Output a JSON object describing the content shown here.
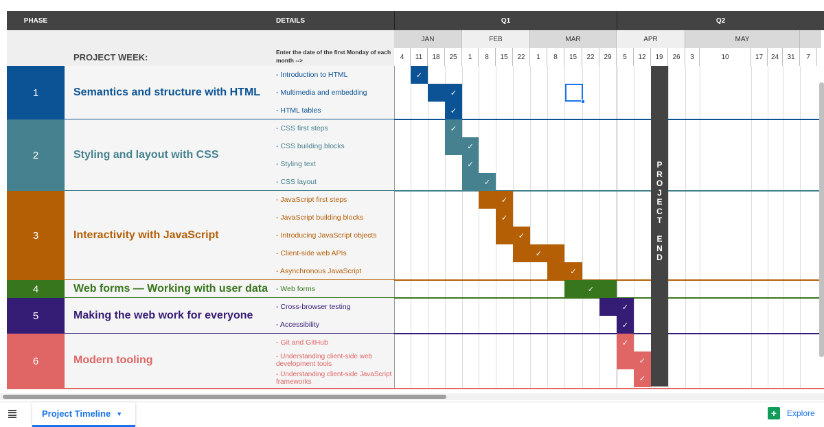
{
  "header": {
    "phase": "PHASE",
    "details": "DETAILS",
    "q1": "Q1",
    "q2": "Q2"
  },
  "months": [
    "JAN",
    "FEB",
    "MAR",
    "APR",
    "MAY"
  ],
  "project_week_label": "PROJECT WEEK:",
  "project_week_note": "Enter the date of the first Monday of each month -->",
  "weeks": [
    "4",
    "11",
    "18",
    "25",
    "1",
    "8",
    "15",
    "22",
    "1",
    "8",
    "15",
    "22",
    "29",
    "5",
    "12",
    "19",
    "26",
    "3",
    "10",
    "17",
    "24",
    "31",
    "7"
  ],
  "phases": [
    {
      "num": "1",
      "title": "Semantics and structure with HTML",
      "color": "#0b5394",
      "tasks": [
        "- Introduction to HTML",
        "- Multimedia and embedding",
        "- HTML tables"
      ]
    },
    {
      "num": "2",
      "title": "Styling and layout with CSS",
      "color": "#45818e",
      "tasks": [
        "- CSS first steps",
        "- CSS building blocks",
        "- Styling text",
        "- CSS layout"
      ]
    },
    {
      "num": "3",
      "title": "Interactivity with JavaScript",
      "color": "#b45f06",
      "tasks": [
        "- JavaScript first steps",
        "- JavaScript building blocks",
        "- Introducing JavaScript objects",
        "- Client-side web APIs",
        "- Asynchronous JavaScript"
      ]
    },
    {
      "num": "4",
      "title": "Web forms — Working with user data",
      "color": "#38761d",
      "tasks": [
        "- Web forms"
      ]
    },
    {
      "num": "5",
      "title": "Making the web work for everyone",
      "color": "#351c75",
      "tasks": [
        "- Cross-browser testing",
        "- Accessibility"
      ]
    },
    {
      "num": "6",
      "title": "Modern tooling",
      "color": "#e06666",
      "tasks": [
        "- Git and GitHub",
        "- Understanding client-side web development tools",
        "- Understanding client-side JavaScript frameworks"
      ]
    }
  ],
  "checkmark": "✓",
  "project_end": "PROJECT END",
  "sheet_tab": "Project Timeline",
  "explore": "Explore",
  "icons": {
    "menu": "all-sheets-icon",
    "caret": "caret-down-icon",
    "explore": "explore-icon"
  }
}
